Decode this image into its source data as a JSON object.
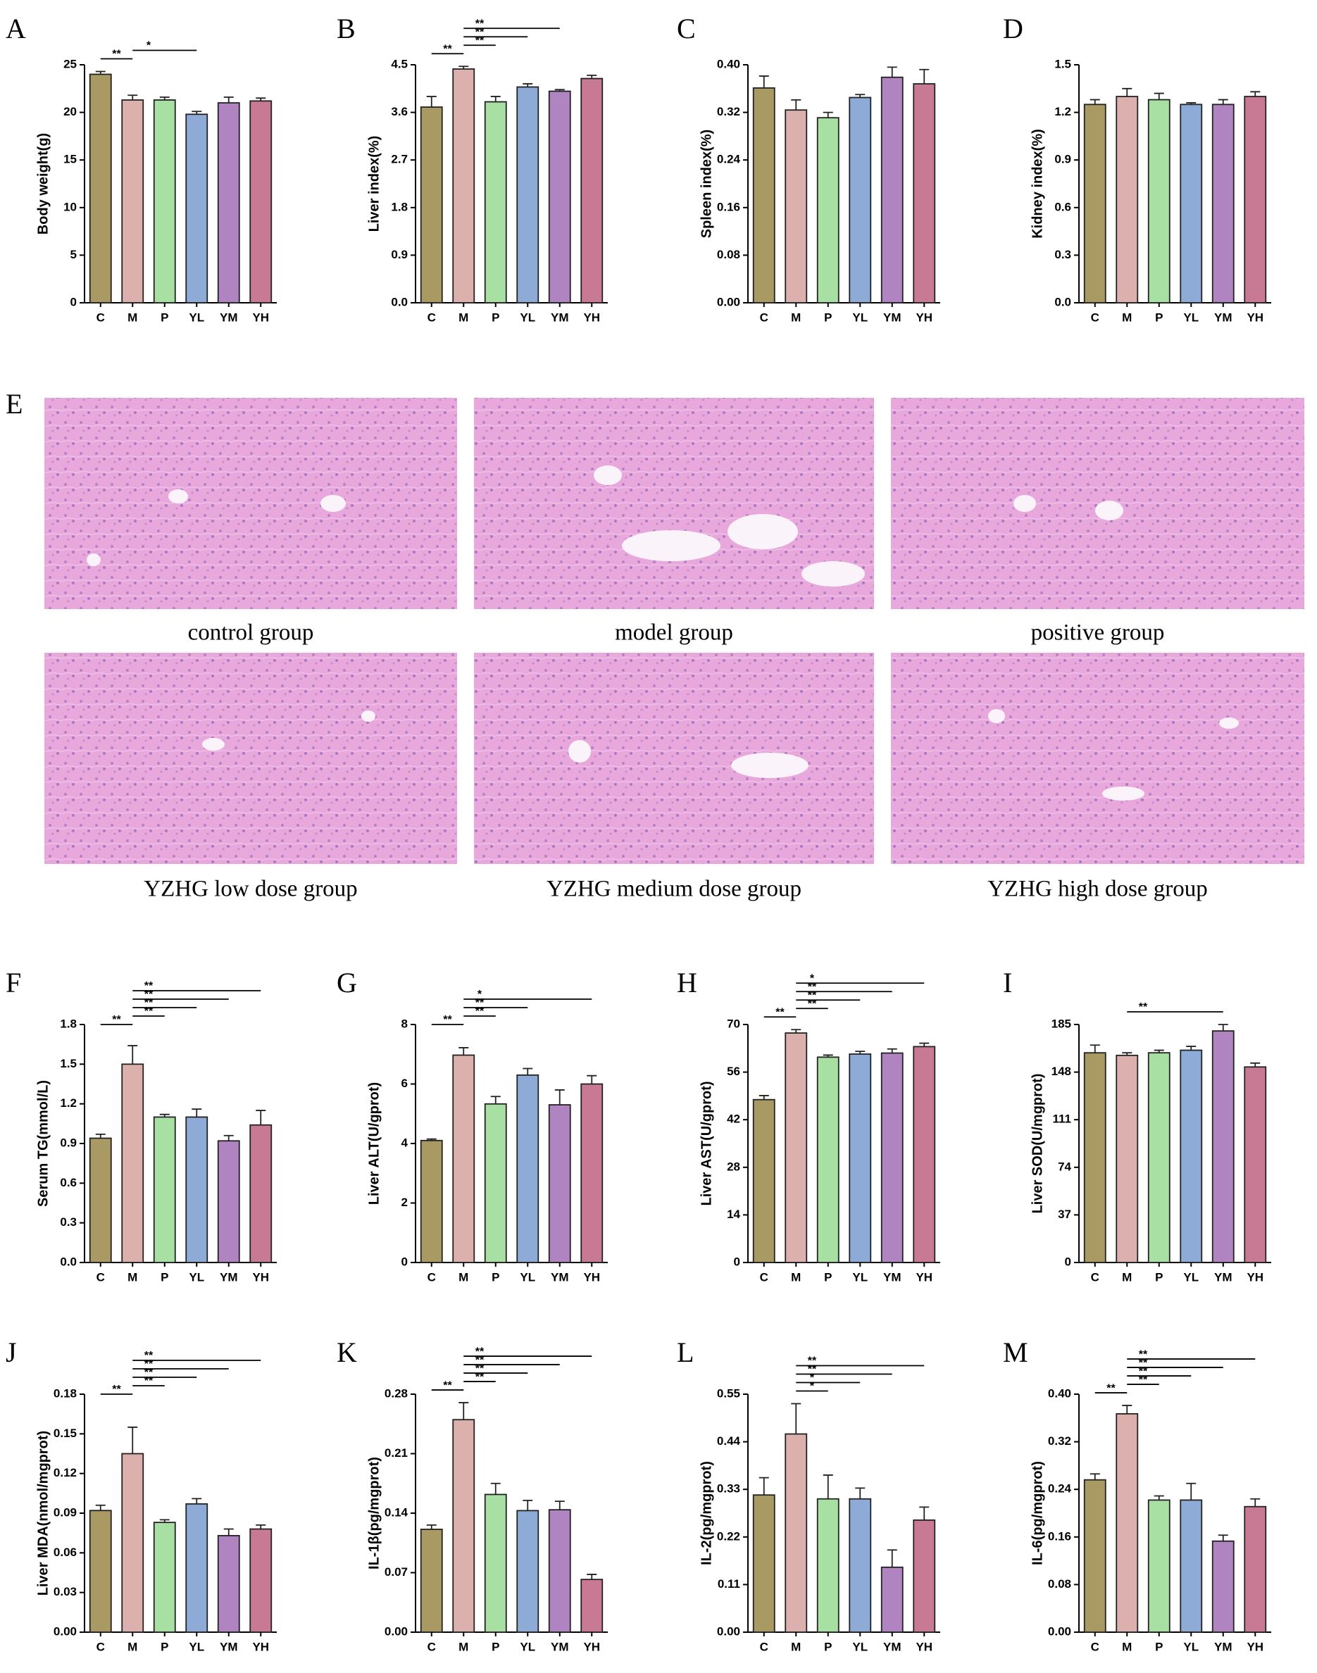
{
  "chart_data": [
    {
      "type": "bar",
      "label": "A",
      "ylabel": "Body weight(g)",
      "categories": [
        "C",
        "M",
        "P",
        "YL",
        "YM",
        "YH"
      ],
      "values": [
        24.0,
        21.3,
        21.3,
        19.8,
        21.0,
        21.2
      ],
      "errors": [
        0.3,
        0.5,
        0.3,
        0.3,
        0.6,
        0.3
      ],
      "colors": [
        "#a89a62",
        "#dcb0ad",
        "#a8e0a3",
        "#8eaad6",
        "#b084c0",
        "#c87a94"
      ],
      "ylim": [
        0,
        25
      ],
      "yticks": [
        0,
        5,
        10,
        15,
        20,
        25
      ],
      "annotations": [
        {
          "from": 0,
          "to": 1,
          "label": "**"
        },
        {
          "from": 1,
          "to": 3,
          "label": "*"
        }
      ]
    },
    {
      "type": "bar",
      "label": "B",
      "ylabel": "Liver index(%)",
      "categories": [
        "C",
        "M",
        "P",
        "YL",
        "YM",
        "YH"
      ],
      "values": [
        3.7,
        4.42,
        3.8,
        4.08,
        4.0,
        4.24
      ],
      "errors": [
        0.2,
        0.05,
        0.1,
        0.06,
        0.03,
        0.06
      ],
      "colors": [
        "#a89a62",
        "#dcb0ad",
        "#a8e0a3",
        "#8eaad6",
        "#b084c0",
        "#c87a94"
      ],
      "ylim": [
        0,
        4.5
      ],
      "yticks": [
        {
          "value": 0,
          "label": "0.0"
        },
        0.9,
        1.8,
        2.7,
        3.6,
        4.5
      ],
      "annotations": [
        {
          "from": 0,
          "to": 1,
          "label": "**"
        },
        {
          "from": 1,
          "to": 2,
          "label": "**"
        },
        {
          "from": 1,
          "to": 3,
          "label": "**"
        },
        {
          "from": 1,
          "to": 4,
          "label": "**"
        }
      ]
    },
    {
      "type": "bar",
      "label": "C",
      "ylabel": "Spleen index(%)",
      "categories": [
        "C",
        "M",
        "P",
        "YL",
        "YM",
        "YH"
      ],
      "values": [
        0.361,
        0.324,
        0.311,
        0.345,
        0.379,
        0.368
      ],
      "errors": [
        0.02,
        0.017,
        0.009,
        0.005,
        0.017,
        0.024
      ],
      "colors": [
        "#a89a62",
        "#dcb0ad",
        "#a8e0a3",
        "#8eaad6",
        "#b084c0",
        "#c87a94"
      ],
      "ylim": [
        0,
        0.4
      ],
      "yticks": [
        {
          "value": 0,
          "label": "0.00"
        },
        0.08,
        0.16,
        0.24,
        0.32,
        {
          "value": 0.4,
          "label": "0.40"
        }
      ],
      "annotations": []
    },
    {
      "type": "bar",
      "label": "D",
      "ylabel": "Kidney index(%)",
      "categories": [
        "C",
        "M",
        "P",
        "YL",
        "YM",
        "YH"
      ],
      "values": [
        1.25,
        1.3,
        1.28,
        1.25,
        1.25,
        1.3
      ],
      "errors": [
        0.03,
        0.05,
        0.04,
        0.01,
        0.03,
        0.03
      ],
      "colors": [
        "#a89a62",
        "#dcb0ad",
        "#a8e0a3",
        "#8eaad6",
        "#b084c0",
        "#c87a94"
      ],
      "ylim": [
        0,
        1.5
      ],
      "yticks": [
        {
          "value": 0,
          "label": "0.0"
        },
        0.3,
        0.6,
        0.9,
        1.2,
        1.5
      ],
      "annotations": []
    },
    {
      "type": "bar",
      "label": "F",
      "ylabel": "Serum TG(mmol/L)",
      "categories": [
        "C",
        "M",
        "P",
        "YL",
        "YM",
        "YH"
      ],
      "values": [
        0.94,
        1.5,
        1.1,
        1.1,
        0.92,
        1.04
      ],
      "errors": [
        0.03,
        0.14,
        0.02,
        0.06,
        0.04,
        0.11
      ],
      "colors": [
        "#a89a62",
        "#dcb0ad",
        "#a8e0a3",
        "#8eaad6",
        "#b084c0",
        "#c87a94"
      ],
      "ylim": [
        0,
        1.8
      ],
      "yticks": [
        {
          "value": 0,
          "label": "0.0"
        },
        0.3,
        0.6,
        0.9,
        1.2,
        1.5,
        1.8
      ],
      "annotations": [
        {
          "from": 0,
          "to": 1,
          "label": "**"
        },
        {
          "from": 1,
          "to": 2,
          "label": "**"
        },
        {
          "from": 1,
          "to": 3,
          "label": "**"
        },
        {
          "from": 1,
          "to": 4,
          "label": "**"
        },
        {
          "from": 1,
          "to": 5,
          "label": "**"
        }
      ]
    },
    {
      "type": "bar",
      "label": "G",
      "ylabel": "Liver ALT(U/gprot)",
      "categories": [
        "C",
        "M",
        "P",
        "YL",
        "YM",
        "YH"
      ],
      "values": [
        4.1,
        6.97,
        5.33,
        6.3,
        5.3,
        6.0
      ],
      "errors": [
        0.05,
        0.25,
        0.25,
        0.22,
        0.5,
        0.28
      ],
      "colors": [
        "#a89a62",
        "#dcb0ad",
        "#a8e0a3",
        "#8eaad6",
        "#b084c0",
        "#c87a94"
      ],
      "ylim": [
        0,
        8
      ],
      "yticks": [
        0,
        2,
        4,
        6,
        8
      ],
      "annotations": [
        {
          "from": 0,
          "to": 1,
          "label": "**"
        },
        {
          "from": 1,
          "to": 2,
          "label": "**"
        },
        {
          "from": 1,
          "to": 3,
          "label": "**"
        },
        {
          "from": 1,
          "to": 5,
          "label": "*"
        }
      ]
    },
    {
      "type": "bar",
      "label": "H",
      "ylabel": "Liver AST(U/gprot)",
      "categories": [
        "C",
        "M",
        "P",
        "YL",
        "YM",
        "YH"
      ],
      "values": [
        47.9,
        67.5,
        60.4,
        61.3,
        61.6,
        63.5
      ],
      "errors": [
        1.2,
        1.0,
        0.6,
        0.8,
        1.2,
        1.0
      ],
      "colors": [
        "#a89a62",
        "#dcb0ad",
        "#a8e0a3",
        "#8eaad6",
        "#b084c0",
        "#c87a94"
      ],
      "ylim": [
        0,
        70
      ],
      "yticks": [
        0,
        14,
        28,
        42,
        56,
        70
      ],
      "annotations": [
        {
          "from": 0,
          "to": 1,
          "label": "**"
        },
        {
          "from": 1,
          "to": 2,
          "label": "**"
        },
        {
          "from": 1,
          "to": 3,
          "label": "**"
        },
        {
          "from": 1,
          "to": 4,
          "label": "**"
        },
        {
          "from": 1,
          "to": 5,
          "label": "*"
        }
      ]
    },
    {
      "type": "bar",
      "label": "I",
      "ylabel": "Liver SOD(U/mgprot)",
      "categories": [
        "C",
        "M",
        "P",
        "YL",
        "YM",
        "YH"
      ],
      "values": [
        163,
        161,
        163,
        165,
        180,
        152
      ],
      "errors": [
        6,
        2,
        2,
        3,
        5,
        3
      ],
      "colors": [
        "#a89a62",
        "#dcb0ad",
        "#a8e0a3",
        "#8eaad6",
        "#b084c0",
        "#c87a94"
      ],
      "ylim": [
        0,
        185
      ],
      "yticks": [
        0,
        37,
        74,
        111,
        148,
        185
      ],
      "annotations": [
        {
          "from": 1,
          "to": 4,
          "label": "**"
        }
      ]
    },
    {
      "type": "bar",
      "label": "J",
      "ylabel": "Liver MDA(nmol/mgprot)",
      "categories": [
        "C",
        "M",
        "P",
        "YL",
        "YM",
        "YH"
      ],
      "values": [
        0.092,
        0.135,
        0.083,
        0.097,
        0.073,
        0.078
      ],
      "errors": [
        0.004,
        0.02,
        0.002,
        0.004,
        0.005,
        0.003
      ],
      "colors": [
        "#a89a62",
        "#dcb0ad",
        "#a8e0a3",
        "#8eaad6",
        "#b084c0",
        "#c87a94"
      ],
      "ylim": [
        0,
        0.18
      ],
      "yticks": [
        {
          "value": 0,
          "label": "0.00"
        },
        0.03,
        0.06,
        0.09,
        0.12,
        0.15,
        0.18
      ],
      "annotations": [
        {
          "from": 0,
          "to": 1,
          "label": "**"
        },
        {
          "from": 1,
          "to": 2,
          "label": "**"
        },
        {
          "from": 1,
          "to": 3,
          "label": "**"
        },
        {
          "from": 1,
          "to": 4,
          "label": "**"
        },
        {
          "from": 1,
          "to": 5,
          "label": "**"
        }
      ]
    },
    {
      "type": "bar",
      "label": "K",
      "ylabel": "IL-1β(pg/mgprot)",
      "categories": [
        "C",
        "M",
        "P",
        "YL",
        "YM",
        "YH"
      ],
      "values": [
        0.121,
        0.25,
        0.162,
        0.143,
        0.144,
        0.062
      ],
      "errors": [
        0.005,
        0.02,
        0.013,
        0.012,
        0.01,
        0.006
      ],
      "colors": [
        "#a89a62",
        "#dcb0ad",
        "#a8e0a3",
        "#8eaad6",
        "#b084c0",
        "#c87a94"
      ],
      "ylim": [
        0,
        0.28
      ],
      "yticks": [
        {
          "value": 0,
          "label": "0.00"
        },
        0.07,
        0.14,
        0.21,
        0.28
      ],
      "annotations": [
        {
          "from": 0,
          "to": 1,
          "label": "**"
        },
        {
          "from": 1,
          "to": 2,
          "label": "**"
        },
        {
          "from": 1,
          "to": 3,
          "label": "**"
        },
        {
          "from": 1,
          "to": 4,
          "label": "**"
        },
        {
          "from": 1,
          "to": 5,
          "label": "**"
        }
      ]
    },
    {
      "type": "bar",
      "label": "L",
      "ylabel": "IL-2(pg/mgprot)",
      "categories": [
        "C",
        "M",
        "P",
        "YL",
        "YM",
        "YH"
      ],
      "values": [
        0.317,
        0.458,
        0.308,
        0.308,
        0.15,
        0.259
      ],
      "errors": [
        0.04,
        0.07,
        0.055,
        0.025,
        0.04,
        0.03
      ],
      "colors": [
        "#a89a62",
        "#dcb0ad",
        "#a8e0a3",
        "#8eaad6",
        "#b084c0",
        "#c87a94"
      ],
      "ylim": [
        0,
        0.55
      ],
      "yticks": [
        {
          "value": 0,
          "label": "0.00"
        },
        0.11,
        0.22,
        0.33,
        0.44,
        0.55
      ],
      "annotations": [
        {
          "from": 1,
          "to": 2,
          "label": "*"
        },
        {
          "from": 1,
          "to": 3,
          "label": "*"
        },
        {
          "from": 1,
          "to": 4,
          "label": "**"
        },
        {
          "from": 1,
          "to": 5,
          "label": "**"
        }
      ]
    },
    {
      "type": "bar",
      "label": "M",
      "ylabel": "IL-6(pg/mgprot)",
      "categories": [
        "C",
        "M",
        "P",
        "YL",
        "YM",
        "YH"
      ],
      "values": [
        0.256,
        0.367,
        0.222,
        0.222,
        0.153,
        0.211
      ],
      "errors": [
        0.01,
        0.014,
        0.007,
        0.028,
        0.01,
        0.013
      ],
      "colors": [
        "#a89a62",
        "#dcb0ad",
        "#a8e0a3",
        "#8eaad6",
        "#b084c0",
        "#c87a94"
      ],
      "ylim": [
        0,
        0.4
      ],
      "yticks": [
        {
          "value": 0,
          "label": "0.00"
        },
        0.08,
        0.16,
        0.24,
        0.32,
        {
          "value": 0.4,
          "label": "0.40"
        }
      ],
      "annotations": [
        {
          "from": 0,
          "to": 1,
          "label": "**"
        },
        {
          "from": 1,
          "to": 2,
          "label": "**"
        },
        {
          "from": 1,
          "to": 3,
          "label": "**"
        },
        {
          "from": 1,
          "to": 4,
          "label": "**"
        },
        {
          "from": 1,
          "to": 5,
          "label": "**"
        }
      ]
    }
  ],
  "histology": {
    "label": "E",
    "captions": [
      "control group",
      "model group",
      "positive group",
      "YZHG low dose group",
      "YZHG medium dose group",
      "YZHG high dose group"
    ]
  }
}
